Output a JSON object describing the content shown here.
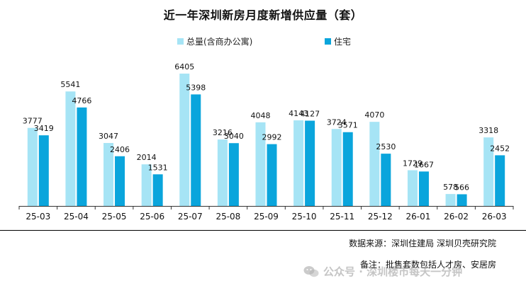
{
  "chart_data": {
    "type": "bar",
    "title": "近一年深圳新房月度新增供应量（套）",
    "categories": [
      "25-03",
      "25-04",
      "25-05",
      "25-06",
      "25-07",
      "25-08",
      "25-09",
      "25-10",
      "25-11",
      "25-12",
      "26-01",
      "26-02",
      "26-03"
    ],
    "series": [
      {
        "name": "总量(含商办公寓)",
        "color": "#a6e4f5",
        "values": [
          3777,
          5541,
          3047,
          2014,
          6405,
          3216,
          4048,
          4143,
          3724,
          4070,
          1729,
          578,
          3318
        ]
      },
      {
        "name": "住宅",
        "color": "#0aa5dc",
        "values": [
          3419,
          4766,
          2406,
          1531,
          5398,
          3040,
          2992,
          4127,
          3571,
          2530,
          1667,
          566,
          2452
        ]
      }
    ],
    "ylim": [
      0,
      6405
    ],
    "legend_position": "top",
    "grid": false
  },
  "footer": {
    "source": "数据来源：深圳住建局  深圳贝壳研究院",
    "note": "备注：批售套数包括人才房、安居房"
  },
  "watermark": {
    "text": "公众号 · 深圳楼市每天一分钟",
    "icon": "wechat-icon"
  }
}
